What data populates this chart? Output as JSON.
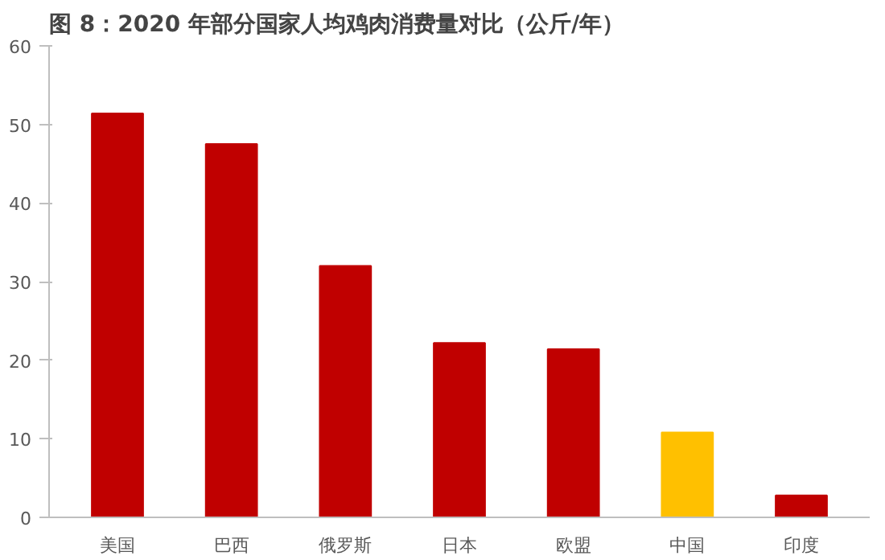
{
  "chart_data": {
    "type": "bar",
    "title": "图 8：2020 年部分国家人均鸡肉消费量对比（公斤/年）",
    "categories": [
      "美国",
      "巴西",
      "俄罗斯",
      "日本",
      "欧盟",
      "中国",
      "印度"
    ],
    "values": [
      51.4,
      47.5,
      32.0,
      22.2,
      21.4,
      10.8,
      2.8
    ],
    "colors": [
      "#c00000",
      "#c00000",
      "#c00000",
      "#c00000",
      "#c00000",
      "#ffc000",
      "#c00000"
    ],
    "ylim": [
      0,
      60
    ],
    "yticks": [
      0,
      10,
      20,
      30,
      40,
      50,
      60
    ],
    "grid": false
  }
}
